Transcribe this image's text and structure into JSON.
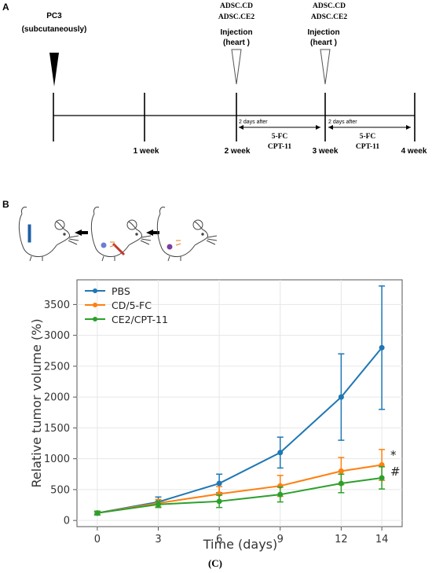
{
  "panel_a": {
    "label": "A",
    "cells": {
      "name": "PC3",
      "route": "(subcutaneously)"
    },
    "injections": [
      {
        "cell_lines": [
          "ADSC.CD",
          "ADSC.CE2"
        ],
        "label_line1": "Injection",
        "label_line2": "(heart )"
      },
      {
        "cell_lines": [
          "ADSC.CD",
          "ADSC.CE2"
        ],
        "label_line1": "Injection",
        "label_line2": "(heart )"
      }
    ],
    "weeks": [
      "1 week",
      "2 week",
      "3 week",
      "4 week"
    ],
    "treatments": [
      {
        "after": "2 days after",
        "drug1": "5-FC",
        "drug2": "CPT-11"
      },
      {
        "after": "2 days after",
        "drug1": "5-FC",
        "drug2": "CPT-11"
      }
    ]
  },
  "panel_b": {
    "label": "B",
    "mouse_icons": [
      "mouse-icon",
      "mouse-injected-icon",
      "mouse-treated-icon"
    ],
    "arrow_icon": "right-arrow-icon"
  },
  "chart_data": {
    "type": "line",
    "xlabel": "Time (days)",
    "ylabel": "Relative tumor volume (%)",
    "x": [
      0,
      3,
      6,
      9,
      12,
      14
    ],
    "xticks": [
      "0",
      "3",
      "6",
      "9",
      "12",
      "14"
    ],
    "yticks": [
      "0",
      "500",
      "1000",
      "1500",
      "2000",
      "2500",
      "3000",
      "3500"
    ],
    "xlim": [
      -1,
      15
    ],
    "ylim": [
      -100,
      3900
    ],
    "grid": true,
    "legend": "top-left",
    "series": [
      {
        "name": "PBS",
        "color": "#1f77b4",
        "values": [
          120,
          300,
          600,
          1100,
          2000,
          2800
        ],
        "errors": [
          30,
          80,
          150,
          250,
          700,
          1000
        ]
      },
      {
        "name": "CD/5-FC",
        "color": "#ff7f0e",
        "values": [
          120,
          280,
          430,
          560,
          800,
          900
        ],
        "errors": [
          30,
          60,
          120,
          170,
          220,
          250
        ]
      },
      {
        "name": "CE2/CPT-11",
        "color": "#2ca02c",
        "values": [
          120,
          260,
          310,
          420,
          600,
          690
        ],
        "errors": [
          30,
          50,
          100,
          120,
          150,
          180
        ]
      }
    ],
    "annotations": [
      "*",
      "#"
    ]
  },
  "caption": "(C)"
}
